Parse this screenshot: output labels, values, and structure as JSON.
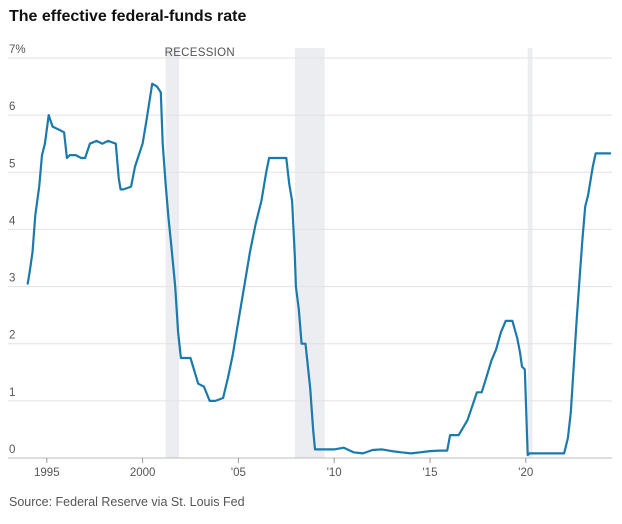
{
  "header": {
    "title": "The effective federal-funds rate"
  },
  "footer": {
    "source": "Source: Federal Reserve via St. Louis Fed"
  },
  "chart_data": {
    "type": "line",
    "title": "The effective federal-funds rate",
    "xlabel": "",
    "ylabel": "",
    "xlim": [
      1993.6,
      2024.5
    ],
    "ylim": [
      0,
      7
    ],
    "grid": true,
    "y_ticks": [
      {
        "value": 0,
        "label": "0"
      },
      {
        "value": 1,
        "label": "1"
      },
      {
        "value": 2,
        "label": "2"
      },
      {
        "value": 3,
        "label": "3"
      },
      {
        "value": 4,
        "label": "4"
      },
      {
        "value": 5,
        "label": "5"
      },
      {
        "value": 6,
        "label": "6"
      },
      {
        "value": 7,
        "label": "7%"
      }
    ],
    "x_ticks": [
      {
        "value": 1995,
        "label": "1995"
      },
      {
        "value": 2000,
        "label": "2000"
      },
      {
        "value": 2005,
        "label": "'05"
      },
      {
        "value": 2010,
        "label": "'10"
      },
      {
        "value": 2015,
        "label": "'15"
      },
      {
        "value": 2020,
        "label": "'20"
      }
    ],
    "recession_label": "RECESSION",
    "recessions": [
      [
        2001.2,
        2001.9
      ],
      [
        2007.95,
        2009.5
      ],
      [
        2020.1,
        2020.35
      ]
    ],
    "colors": {
      "line": "#1a7aab",
      "recession": "#ecedf0",
      "grid": "#e2e2e2"
    },
    "series": [
      {
        "name": "",
        "x": [
          1994.0,
          1994.1,
          1994.25,
          1994.4,
          1994.6,
          1994.75,
          1994.9,
          1995.1,
          1995.3,
          1995.6,
          1995.9,
          1996.05,
          1996.2,
          1996.5,
          1996.8,
          1997.0,
          1997.25,
          1997.6,
          1997.9,
          1998.2,
          1998.6,
          1998.75,
          1998.85,
          1999.0,
          1999.4,
          1999.6,
          1999.8,
          2000.0,
          2000.2,
          2000.5,
          2000.75,
          2000.95,
          2001.05,
          2001.2,
          2001.35,
          2001.5,
          2001.7,
          2001.85,
          2002.0,
          2002.3,
          2002.5,
          2002.9,
          2003.2,
          2003.5,
          2003.8,
          2004.2,
          2004.45,
          2004.7,
          2005.0,
          2005.3,
          2005.6,
          2005.9,
          2006.2,
          2006.45,
          2006.6,
          2007.0,
          2007.5,
          2007.65,
          2007.8,
          2007.95,
          2008.0,
          2008.15,
          2008.3,
          2008.5,
          2008.75,
          2008.9,
          2009.0,
          2009.5,
          2010.0,
          2010.5,
          2011.0,
          2011.5,
          2012.0,
          2012.5,
          2013.0,
          2013.5,
          2014.0,
          2014.5,
          2015.0,
          2015.5,
          2015.9,
          2016.05,
          2016.5,
          2016.95,
          2017.2,
          2017.45,
          2017.7,
          2017.95,
          2018.2,
          2018.45,
          2018.7,
          2018.95,
          2019.3,
          2019.55,
          2019.7,
          2019.8,
          2019.95,
          2020.1,
          2020.2,
          2020.5,
          2021.0,
          2021.5,
          2022.0,
          2022.2,
          2022.35,
          2022.5,
          2022.65,
          2022.8,
          2022.95,
          2023.1,
          2023.25,
          2023.5,
          2023.65,
          2024.0,
          2024.4
        ],
        "y": [
          3.05,
          3.25,
          3.6,
          4.25,
          4.75,
          5.3,
          5.5,
          6.0,
          5.8,
          5.75,
          5.7,
          5.25,
          5.3,
          5.3,
          5.25,
          5.25,
          5.5,
          5.55,
          5.5,
          5.55,
          5.5,
          4.9,
          4.7,
          4.7,
          4.75,
          5.1,
          5.3,
          5.5,
          5.9,
          6.55,
          6.5,
          6.4,
          5.5,
          4.8,
          4.2,
          3.7,
          3.0,
          2.2,
          1.75,
          1.75,
          1.75,
          1.3,
          1.25,
          1.0,
          1.0,
          1.05,
          1.4,
          1.8,
          2.4,
          3.0,
          3.6,
          4.1,
          4.5,
          5.0,
          5.25,
          5.25,
          5.25,
          4.8,
          4.5,
          3.5,
          3.0,
          2.6,
          2.0,
          2.0,
          1.2,
          0.5,
          0.15,
          0.15,
          0.15,
          0.18,
          0.1,
          0.08,
          0.14,
          0.15,
          0.12,
          0.1,
          0.08,
          0.1,
          0.12,
          0.13,
          0.13,
          0.4,
          0.4,
          0.66,
          0.9,
          1.15,
          1.15,
          1.42,
          1.7,
          1.9,
          2.2,
          2.4,
          2.4,
          2.1,
          1.85,
          1.6,
          1.55,
          0.05,
          0.08,
          0.08,
          0.08,
          0.08,
          0.08,
          0.35,
          0.8,
          1.6,
          2.4,
          3.1,
          3.8,
          4.4,
          4.6,
          5.1,
          5.33,
          5.33,
          5.33
        ]
      }
    ]
  }
}
